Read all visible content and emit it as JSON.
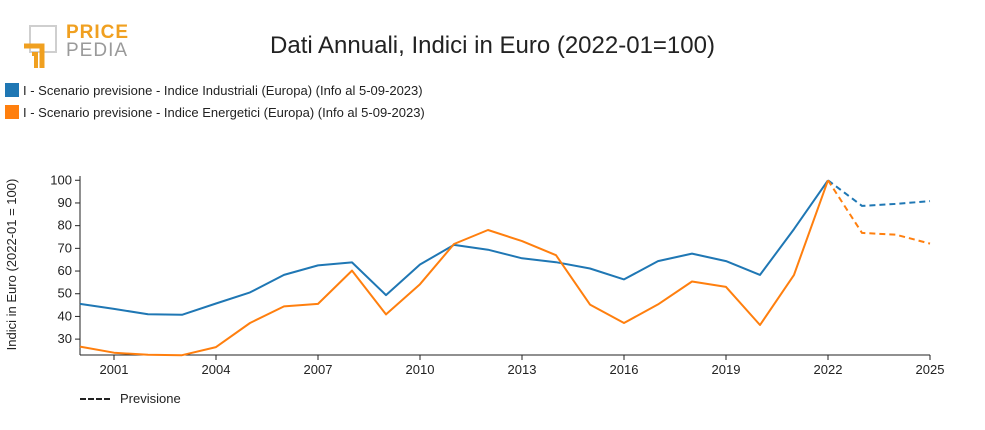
{
  "logo": {
    "word_top": "PRICE",
    "word_bottom": "PEDIA"
  },
  "chart_data": {
    "type": "line",
    "title": "Dati Annuali, Indici in Euro (2022-01=100)",
    "xlabel": "",
    "ylabel": "Indici in Euro (2022-01 = 100)",
    "xlim": [
      2000,
      2025
    ],
    "ylim": [
      23,
      101
    ],
    "x_ticks": [
      2001,
      2004,
      2007,
      2010,
      2013,
      2016,
      2019,
      2022,
      2025
    ],
    "y_ticks": [
      30,
      40,
      50,
      60,
      70,
      80,
      90,
      100
    ],
    "legend_position": "top-left",
    "forecast_legend_label": "Previsione",
    "series": [
      {
        "name": "I - Scenario previsione - Indice Industriali (Europa) (Info al 5-09-2023)",
        "color": "#1f77b4",
        "x": [
          2000,
          2001,
          2002,
          2003,
          2004,
          2005,
          2006,
          2007,
          2008,
          2009,
          2010,
          2011,
          2012,
          2013,
          2014,
          2015,
          2016,
          2017,
          2018,
          2019,
          2020,
          2021,
          2022,
          2023,
          2024,
          2025
        ],
        "values": [
          45.5,
          43.3,
          41.0,
          40.7,
          45.7,
          50.6,
          58.3,
          62.5,
          63.8,
          49.4,
          62.9,
          71.5,
          69.4,
          65.6,
          63.9,
          61.1,
          56.3,
          64.4,
          67.7,
          64.4,
          58.3,
          78.5,
          100,
          88.7,
          89.6,
          90.8
        ],
        "forecast_from": 2022
      },
      {
        "name": "I - Scenario previsione - Indice Energetici (Europa) (Info al 5-09-2023)",
        "color": "#ff7f0e",
        "x": [
          2000,
          2001,
          2002,
          2003,
          2004,
          2005,
          2006,
          2007,
          2008,
          2009,
          2010,
          2011,
          2012,
          2013,
          2014,
          2015,
          2016,
          2017,
          2018,
          2019,
          2020,
          2021,
          2022,
          2023,
          2024,
          2025
        ],
        "values": [
          26.7,
          24.0,
          23.1,
          22.9,
          26.5,
          37.1,
          44.4,
          45.5,
          60.2,
          40.9,
          54.2,
          71.9,
          78.1,
          73.2,
          67.0,
          45.2,
          37.1,
          45.3,
          55.4,
          53.0,
          36.2,
          58.3,
          100,
          76.8,
          76.0,
          72.1
        ],
        "forecast_from": 2022
      }
    ]
  }
}
